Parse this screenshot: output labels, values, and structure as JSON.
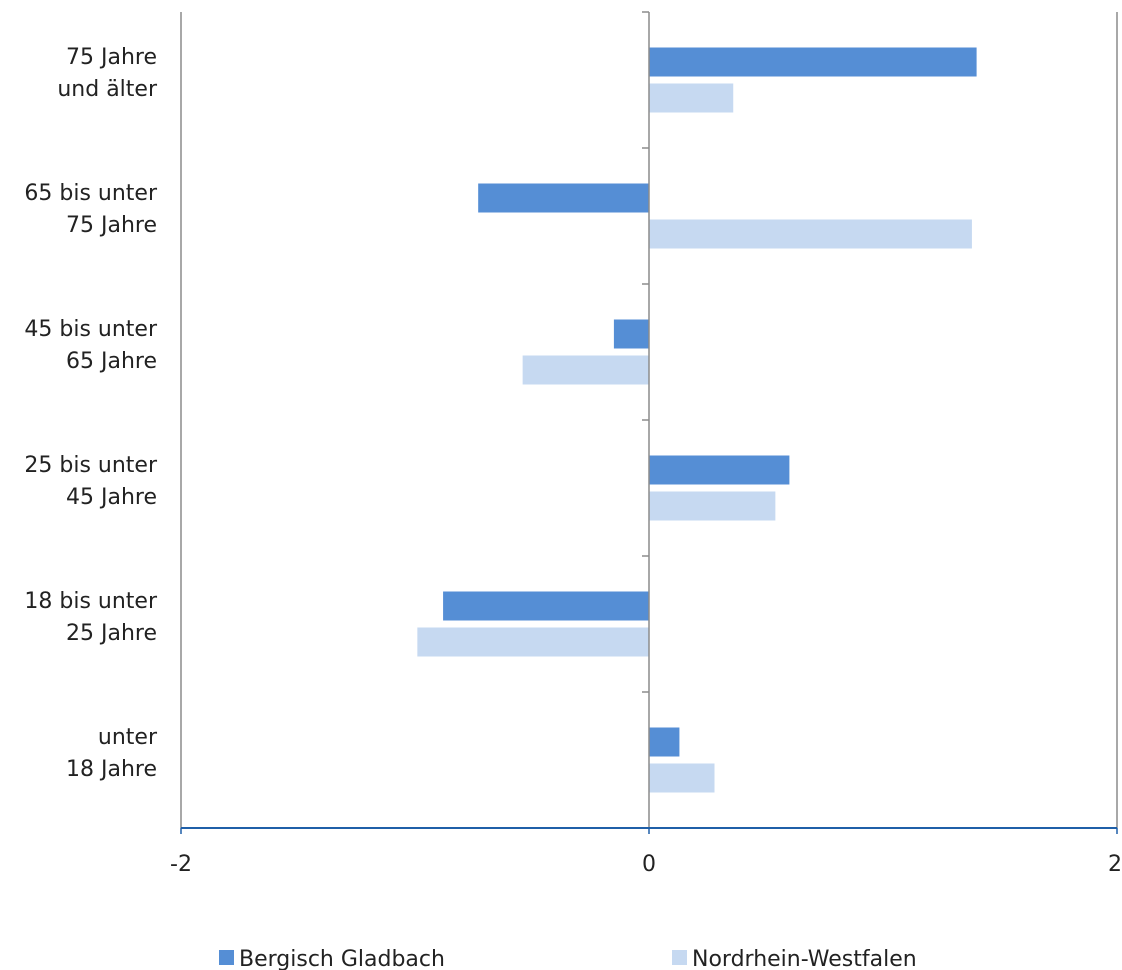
{
  "chart_data": {
    "type": "bar",
    "orientation": "horizontal",
    "categories": [
      [
        "75 Jahre",
        "und älter"
      ],
      [
        "65 bis unter",
        "75 Jahre"
      ],
      [
        "45 bis unter",
        "65 Jahre"
      ],
      [
        "25 bis unter",
        "45 Jahre"
      ],
      [
        "18 bis unter",
        "25 Jahre"
      ],
      [
        "unter",
        "18 Jahre"
      ]
    ],
    "series": [
      {
        "name": "Bergisch Gladbach",
        "color": "#558ed5",
        "values": [
          1.4,
          -0.73,
          -0.15,
          0.6,
          -0.88,
          0.13
        ]
      },
      {
        "name": "Nordrhein-Westfalen",
        "color": "#c6d9f1",
        "values": [
          0.36,
          1.38,
          -0.54,
          0.54,
          -0.99,
          0.28
        ]
      }
    ],
    "xlim": [
      -2,
      2
    ],
    "xticks": [
      "-2",
      "0",
      "2"
    ],
    "legend_position": "bottom",
    "grid": false
  }
}
